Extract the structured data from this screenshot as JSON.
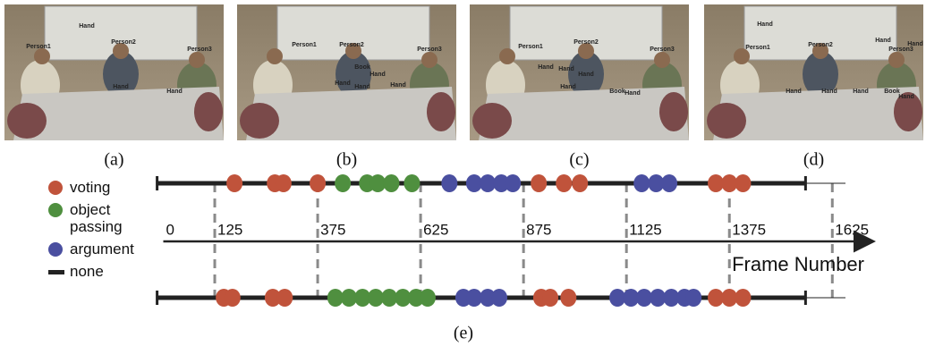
{
  "panels": [
    {
      "caption": "(a)",
      "labels": [
        "Person1",
        "Hand",
        "Person2",
        "Person3",
        "Hand",
        "Hand"
      ]
    },
    {
      "caption": "(b)",
      "labels": [
        "Person1",
        "Person2",
        "Person3",
        "Book",
        "Hand",
        "Hand",
        "Hand",
        "Hand"
      ]
    },
    {
      "caption": "(c)",
      "labels": [
        "Person1",
        "Person2",
        "Person3",
        "Hand",
        "Hand",
        "Hand",
        "Hand",
        "Book",
        "Hand"
      ]
    },
    {
      "caption": "(d)",
      "labels": [
        "Hand",
        "Person1",
        "Person2",
        "Person3",
        "Hand",
        "Hand",
        "Hand",
        "Hand",
        "Hand",
        "Book",
        "Hand"
      ]
    }
  ],
  "chart_data": {
    "type": "timeline",
    "caption": "(e)",
    "xlabel": "Frame Number",
    "xlim": [
      0,
      1720
    ],
    "xticks": [
      0,
      125,
      375,
      625,
      875,
      1125,
      1375,
      1625
    ],
    "series": [
      {
        "name": "voting",
        "color": "#c0533b",
        "values": [
          [
            173,
            271,
            292,
            375,
            912,
            973,
            1012,
            1342,
            1375,
            1408
          ],
          [
            147,
            168,
            266,
            295,
            918,
            940,
            984,
            1342,
            1375,
            1408
          ]
        ]
      },
      {
        "name": "object passing",
        "color": "#4f8f3f",
        "values": [
          [
            436,
            495,
            521,
            554,
            604
          ],
          [
            418,
            451,
            484,
            516,
            549,
            582,
            614,
            642
          ]
        ]
      },
      {
        "name": "argument",
        "color": "#4a4fa0",
        "values": [
          [
            695,
            755,
            788,
            821,
            849,
            1162,
            1197,
            1229
          ],
          [
            729,
            755,
            788,
            816,
            1103,
            1136,
            1168,
            1201,
            1234,
            1266,
            1288
          ]
        ]
      },
      {
        "name": "none",
        "color": "#222222",
        "values": [
          [
            -15,
            1560
          ],
          [
            -15,
            1560
          ]
        ]
      }
    ]
  }
}
